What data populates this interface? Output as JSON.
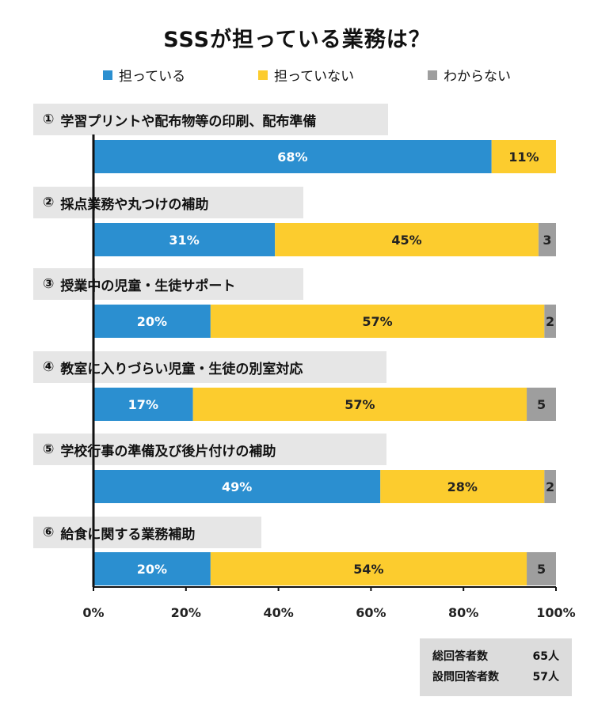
{
  "chart_data": {
    "type": "bar",
    "orientation": "horizontal",
    "stacked": true,
    "title": "SSSが担っている業務は？",
    "legend_position": "top",
    "series": [
      {
        "name": "担っている",
        "color": "#2b8fd0",
        "values": [
          68,
          31,
          20,
          17,
          49,
          20
        ]
      },
      {
        "name": "担っていない",
        "color": "#fccc2e",
        "values": [
          11,
          45,
          57,
          57,
          28,
          54
        ]
      },
      {
        "name": "わからない",
        "color": "#9e9e9e",
        "values": [
          0,
          3,
          2,
          5,
          2,
          5
        ]
      }
    ],
    "categories": [
      {
        "num": "①",
        "label": "学習プリントや配布物等の印刷、配布準備"
      },
      {
        "num": "②",
        "label": "採点業務や丸つけの補助"
      },
      {
        "num": "③",
        "label": "授業中の児童・生徒サポート"
      },
      {
        "num": "④",
        "label": "教室に入りづらい児童・生徒の別室対応"
      },
      {
        "num": "⑤",
        "label": "学校行事の準備及び後片付けの補助"
      },
      {
        "num": "⑥",
        "label": "給食に関する業務補助"
      }
    ],
    "data_labels": [
      [
        "68%",
        "11%",
        ""
      ],
      [
        "31%",
        "45%",
        "3"
      ],
      [
        "20%",
        "57%",
        "2"
      ],
      [
        "17%",
        "57%",
        "5"
      ],
      [
        "49%",
        "28%",
        "2"
      ],
      [
        "20%",
        "54%",
        "5"
      ]
    ],
    "axis_max_units": 79,
    "x_ticks": [
      "0%",
      "20%",
      "40%",
      "60%",
      "80%",
      "100%"
    ],
    "grid": false
  },
  "totals": {
    "respondents_label": "総回答者数",
    "respondents_value": "65人",
    "question_label": "設問回答者数",
    "question_value": "57人"
  }
}
